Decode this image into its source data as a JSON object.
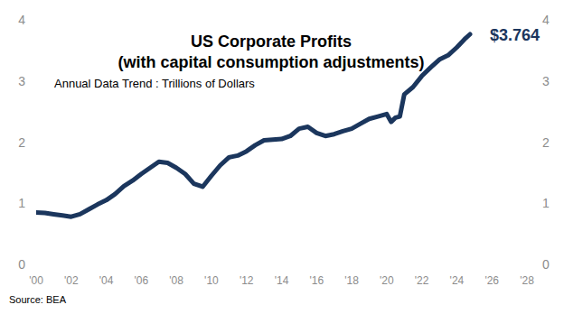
{
  "chart_data": {
    "type": "line",
    "title": "US Corporate Profits",
    "subtitle": "(with capital consumption adjustments)",
    "y_label": "Annual Data Trend : Trillions of Dollars",
    "source": "Source: BEA",
    "x": [
      2000,
      2000.5,
      2001,
      2001.5,
      2002,
      2002.5,
      2003,
      2003.5,
      2004,
      2004.5,
      2005,
      2005.5,
      2006,
      2006.5,
      2007,
      2007.5,
      2008,
      2008.5,
      2009,
      2009.5,
      2010,
      2010.5,
      2011,
      2011.5,
      2012,
      2012.5,
      2013,
      2013.5,
      2014,
      2014.5,
      2015,
      2015.5,
      2016,
      2016.5,
      2017,
      2017.5,
      2018,
      2018.5,
      2019,
      2019.5,
      2020,
      2020.25,
      2020.5,
      2020.75,
      2021,
      2021.5,
      2022,
      2022.5,
      2023,
      2023.5,
      2024,
      2024.5,
      2024.75
    ],
    "series": [
      {
        "color": "#1b365d",
        "values": [
          0.85,
          0.84,
          0.82,
          0.8,
          0.78,
          0.82,
          0.9,
          0.98,
          1.05,
          1.15,
          1.28,
          1.37,
          1.48,
          1.58,
          1.68,
          1.66,
          1.58,
          1.48,
          1.32,
          1.27,
          1.45,
          1.62,
          1.75,
          1.78,
          1.85,
          1.95,
          2.03,
          2.04,
          2.05,
          2.1,
          2.22,
          2.25,
          2.15,
          2.1,
          2.13,
          2.18,
          2.22,
          2.3,
          2.38,
          2.42,
          2.46,
          2.33,
          2.4,
          2.42,
          2.78,
          2.9,
          3.08,
          3.22,
          3.35,
          3.42,
          3.55,
          3.7,
          3.764
        ],
        "value_labels": [
          null,
          null,
          null,
          null,
          null,
          null,
          null,
          null,
          null,
          null,
          null,
          null,
          null,
          null,
          null,
          null,
          null,
          null,
          null,
          null,
          null,
          null,
          null,
          null,
          null,
          null,
          null,
          null,
          null,
          null,
          null,
          null,
          null,
          null,
          null,
          null,
          null,
          null,
          null,
          null,
          null,
          null,
          null,
          null,
          null,
          null,
          null,
          null,
          null,
          null,
          null,
          null,
          "$3.764"
        ]
      }
    ],
    "xlim": [
      2000,
      2028
    ],
    "xticks": [
      {
        "value": 2000,
        "label": "'00"
      },
      {
        "value": 2002,
        "label": "'02"
      },
      {
        "value": 2004,
        "label": "'04"
      },
      {
        "value": 2006,
        "label": "'06"
      },
      {
        "value": 2008,
        "label": "'08"
      },
      {
        "value": 2010,
        "label": "'10"
      },
      {
        "value": 2012,
        "label": "'12"
      },
      {
        "value": 2014,
        "label": "'14"
      },
      {
        "value": 2016,
        "label": "'16"
      },
      {
        "value": 2018,
        "label": "'18"
      },
      {
        "value": 2020,
        "label": "'20"
      },
      {
        "value": 2022,
        "label": "'22"
      },
      {
        "value": 2024,
        "label": "'24"
      },
      {
        "value": 2026,
        "label": "'26"
      },
      {
        "value": 2028,
        "label": "'28"
      }
    ],
    "ylim": [
      0,
      4
    ],
    "yticks": [
      0,
      1,
      2,
      3,
      4
    ],
    "y2lim": [
      0,
      4
    ],
    "y2ticks": [
      0,
      1,
      2,
      3,
      4
    ],
    "grid": false
  }
}
